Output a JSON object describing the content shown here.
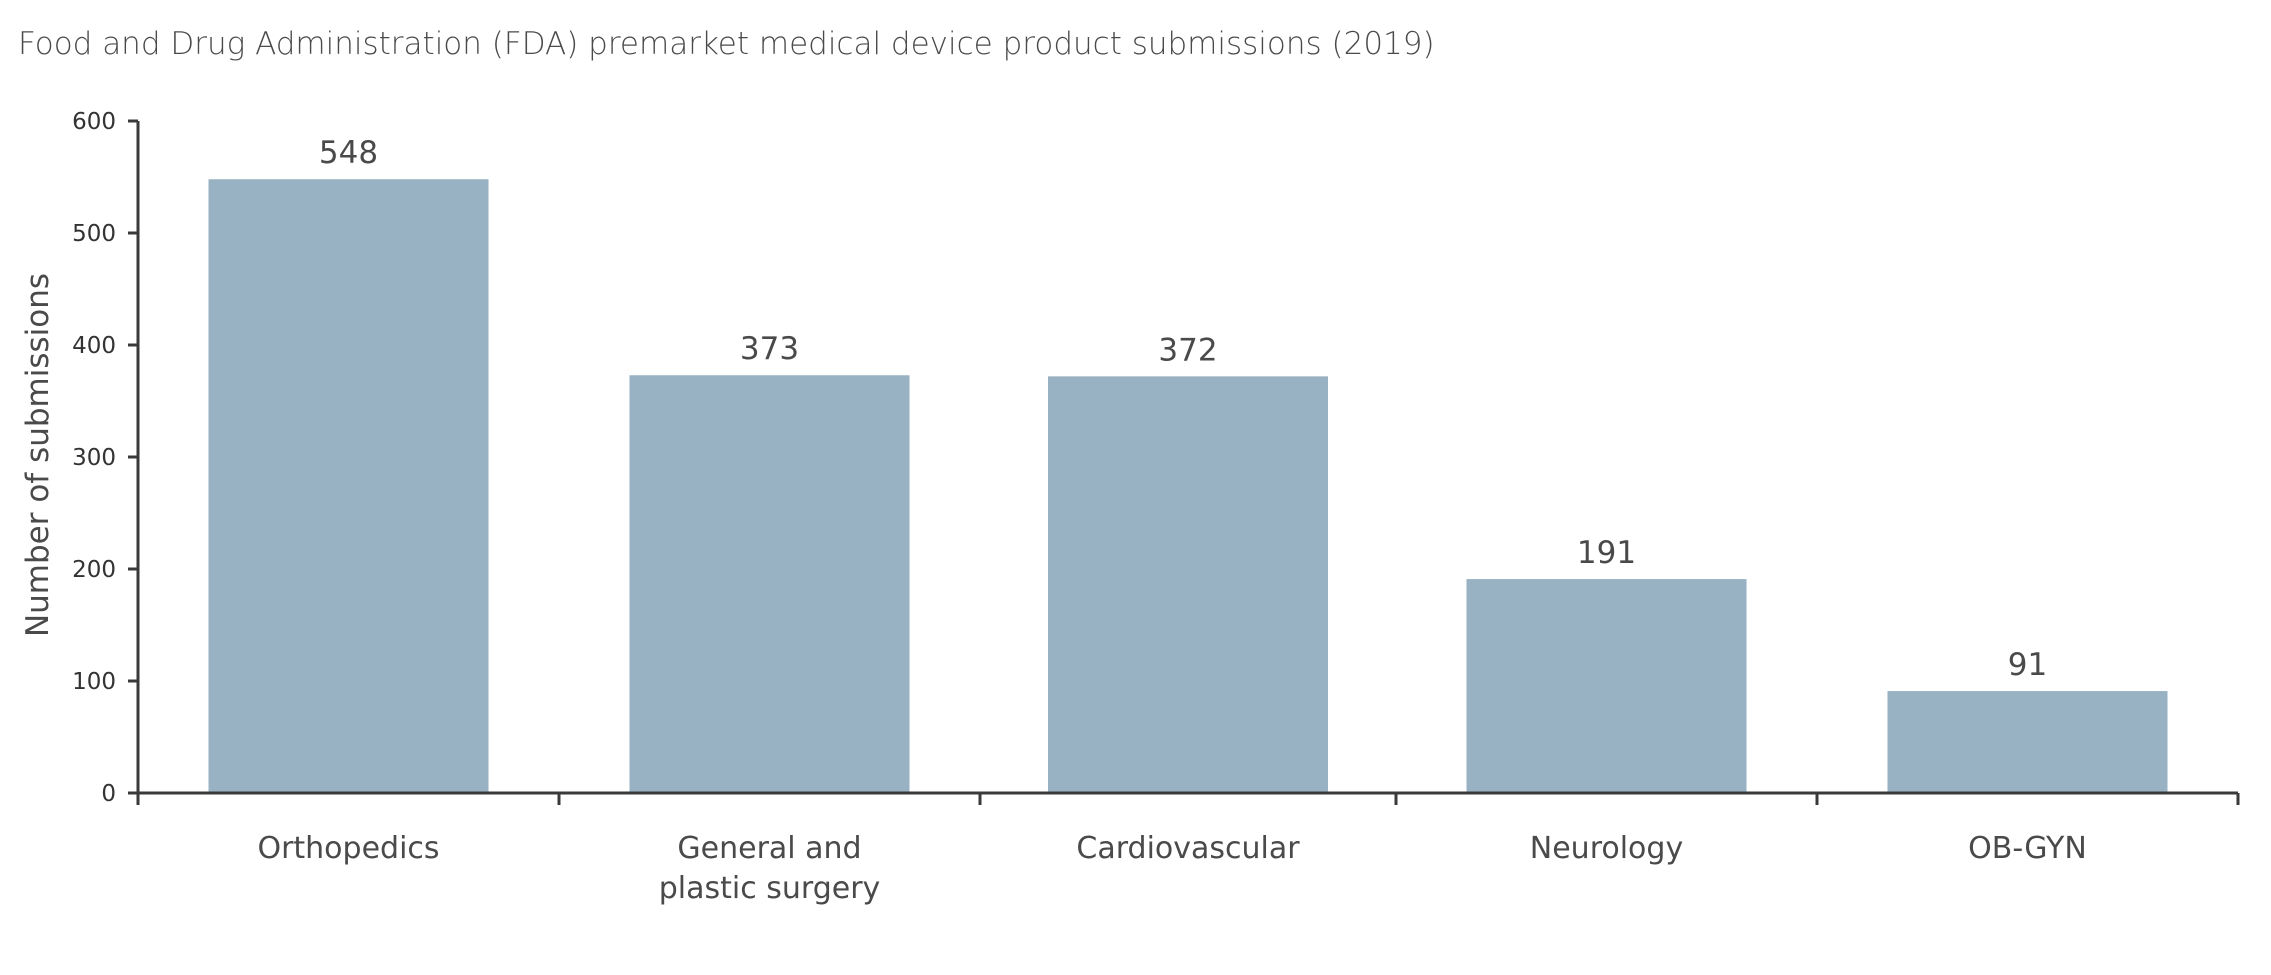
{
  "chart_data": {
    "type": "bar",
    "title": "Food and Drug Administration (FDA) premarket medical device product submissions (2019)",
    "xlabel": "",
    "ylabel": "Number of submissions",
    "categories": [
      [
        "Orthopedics"
      ],
      [
        "General and",
        "plastic surgery"
      ],
      [
        "Cardiovascular"
      ],
      [
        "Neurology"
      ],
      [
        "OB-GYN"
      ]
    ],
    "values": [
      548,
      373,
      372,
      191,
      91
    ],
    "data_labels": [
      "548",
      "373",
      "372",
      "191",
      "91"
    ],
    "ylim": [
      0,
      600
    ],
    "yticks": [
      0,
      100,
      200,
      300,
      400,
      500,
      600
    ],
    "grid": false,
    "legend": "none",
    "colors": {
      "bar": "#98b1c3",
      "axis": "#3a3a3a",
      "text": "#4a4a4a"
    }
  }
}
